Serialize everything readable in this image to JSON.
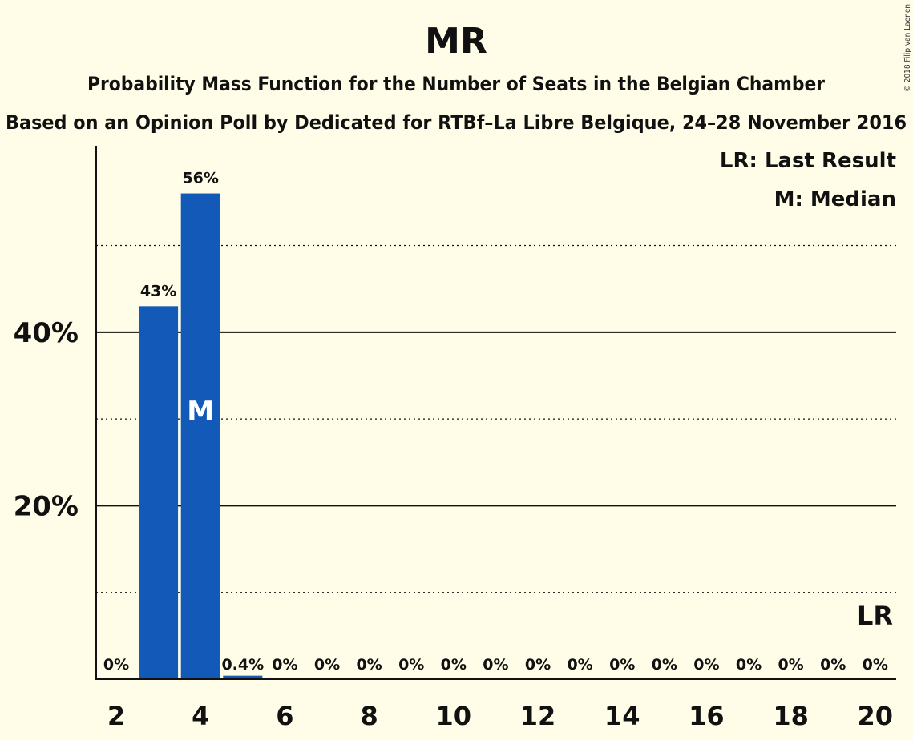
{
  "chart_data": {
    "type": "bar",
    "title": "MR",
    "subtitle": "Probability Mass Function for the Number of Seats in the Belgian Chamber",
    "subtitle2": "Based on an Opinion Poll by Dedicated for RTBf–La Libre Belgique, 24–28 November 2016",
    "copyright": "© 2018 Filip van Laenen",
    "x": [
      2,
      3,
      4,
      5,
      6,
      7,
      8,
      9,
      10,
      11,
      12,
      13,
      14,
      15,
      16,
      17,
      18,
      19,
      20
    ],
    "values": [
      0,
      43,
      56,
      0.4,
      0,
      0,
      0,
      0,
      0,
      0,
      0,
      0,
      0,
      0,
      0,
      0,
      0,
      0,
      0
    ],
    "bar_labels": [
      "0%",
      "43%",
      "56%",
      "0.4%",
      "0%",
      "0%",
      "0%",
      "0%",
      "0%",
      "0%",
      "0%",
      "0%",
      "0%",
      "0%",
      "0%",
      "0%",
      "0%",
      "0%",
      "0%"
    ],
    "x_ticks": [
      2,
      4,
      6,
      8,
      10,
      12,
      14,
      16,
      18,
      20
    ],
    "y_ticks": [
      {
        "value": 20,
        "label": "20%"
      },
      {
        "value": 40,
        "label": "40%"
      }
    ],
    "y_minor_gridlines": [
      10,
      30,
      50
    ],
    "ylim": [
      0,
      61.5
    ],
    "median": {
      "x": 4,
      "label": "M"
    },
    "last_result": {
      "x": 20,
      "label": "LR"
    },
    "legend": [
      "LR: Last Result",
      "M: Median"
    ],
    "legend_position": "top-right",
    "colors": {
      "bar": "#1259B8",
      "background": "#FFFDE7",
      "axis": "#111111"
    }
  }
}
